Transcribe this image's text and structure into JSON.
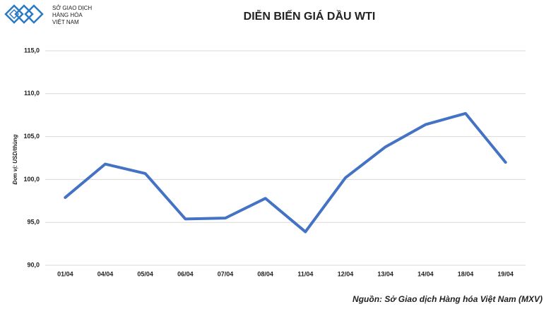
{
  "logo": {
    "lines": [
      "SỞ GIAO DỊCH",
      "HÀNG HÓA",
      "VIỆT NAM"
    ]
  },
  "chart_data": {
    "type": "line",
    "title": "DIỄN BIẾN GIÁ DẦU WTI",
    "y_label": "Đơn vị: USD/thùng",
    "source": "Nguồn: Sở Giao dịch Hàng hóa Việt Nam (MXV)",
    "categories": [
      "01/04",
      "04/04",
      "05/04",
      "06/04",
      "07/04",
      "08/04",
      "11/04",
      "12/04",
      "13/04",
      "14/04",
      "18/04",
      "19/04"
    ],
    "values": [
      97.9,
      101.8,
      100.7,
      95.4,
      95.5,
      97.8,
      93.9,
      100.2,
      103.8,
      106.4,
      107.7,
      102.0
    ],
    "color": "#4472c4",
    "ylim": [
      90,
      115
    ],
    "yticks": [
      {
        "value": 90,
        "label": "90,0"
      },
      {
        "value": 95,
        "label": "95,0"
      },
      {
        "value": 100,
        "label": "100,0"
      },
      {
        "value": 105,
        "label": "105,0"
      },
      {
        "value": 110,
        "label": "110,0"
      },
      {
        "value": 115,
        "label": "115,0"
      }
    ],
    "grid": true
  }
}
